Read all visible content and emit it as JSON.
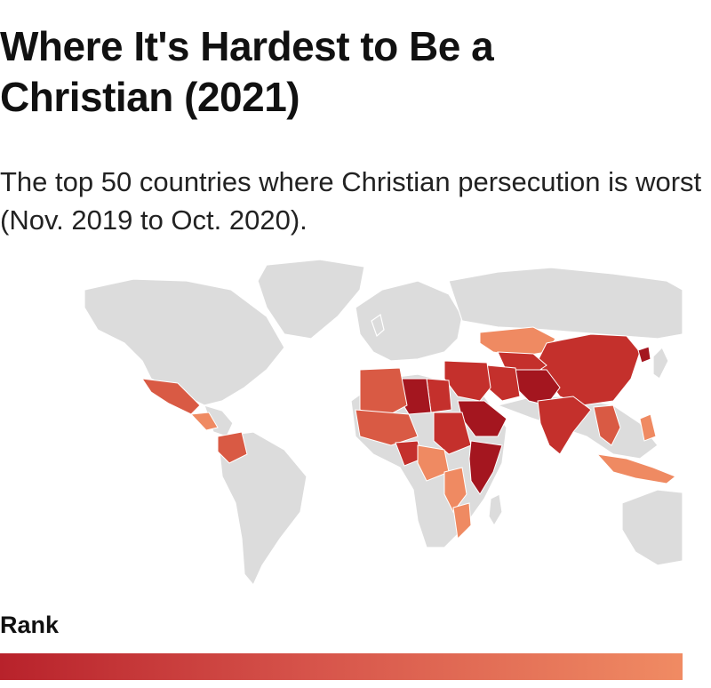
{
  "title": "Where It's Hardest to Be a Christian (2021)",
  "subtitle": "The top 50 countries where Christian persecution is worst (Nov. 2019 to Oct. 2020).",
  "legend": {
    "label": "Rank",
    "color_high": "#b8222b",
    "color_mid": "#d6534a",
    "color_low": "#f08b63"
  },
  "colors": {
    "land": "#dcdcdc",
    "rank_top": "#a4161f",
    "rank_high": "#c4302c",
    "rank_mid": "#d95a44",
    "rank_low": "#ef8a62"
  }
}
